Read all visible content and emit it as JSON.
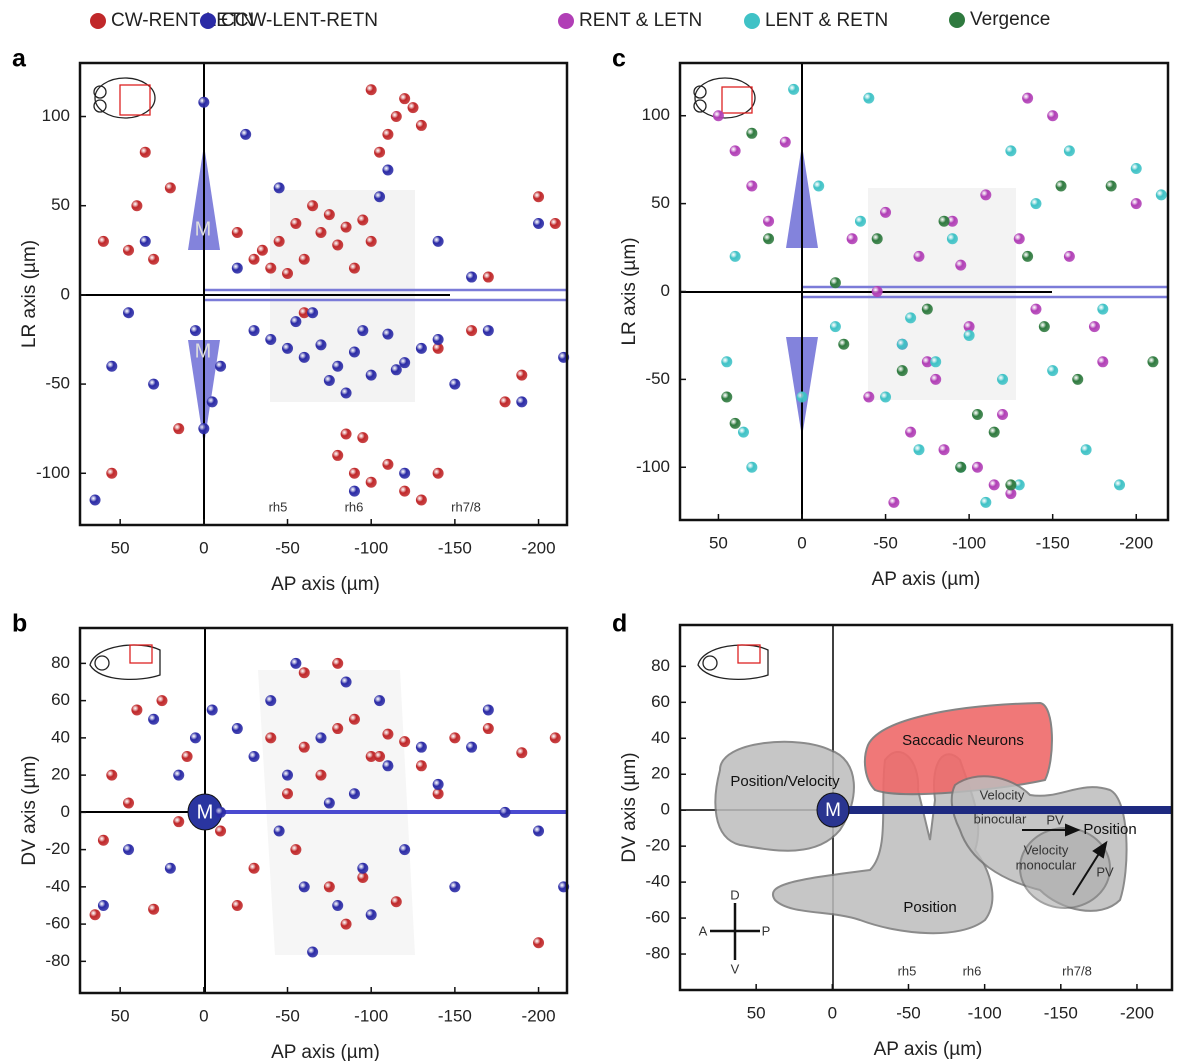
{
  "chart_data": [
    {
      "type": "scatter",
      "panel_label": "a",
      "x_label": "AP axis (µm)",
      "y_label": "LR axis (µm)",
      "xlim": [
        74,
        -217
      ],
      "ylim": [
        -129,
        130
      ],
      "xticks": [
        50,
        0,
        -50,
        -100,
        -150,
        -200
      ],
      "yticks": [
        -100,
        -50,
        0,
        50,
        100
      ],
      "annotations": [
        "M",
        "M",
        "rh5",
        "rh6",
        "rh7/8"
      ],
      "series": [
        {
          "name": "CW-RENT-LETN",
          "color": "#c0282a",
          "x": [
            -35,
            -45,
            -55,
            -60,
            -70,
            -75,
            -80,
            -85,
            -90,
            -95,
            -100,
            -50,
            -65,
            -40,
            -30,
            -20,
            -110,
            -120,
            -115,
            -100,
            -105,
            -125,
            -130,
            -95,
            -85,
            -80,
            -90,
            -100,
            -110,
            -120,
            -130,
            -140,
            60,
            45,
            40,
            30,
            20,
            35,
            -160,
            -180,
            -200,
            -170,
            -190,
            15,
            55,
            -140,
            -210,
            -60
          ],
          "values": [
            25,
            30,
            40,
            20,
            35,
            45,
            28,
            38,
            15,
            42,
            30,
            12,
            50,
            15,
            20,
            35,
            90,
            110,
            100,
            115,
            80,
            105,
            95,
            -80,
            -78,
            -90,
            -100,
            -105,
            -95,
            -110,
            -115,
            -100,
            30,
            25,
            50,
            20,
            60,
            80,
            -20,
            -60,
            55,
            10,
            -45,
            -75,
            -100,
            -30,
            40,
            -10
          ]
        },
        {
          "name": "CCW-LENT-RETN",
          "color": "#2b2ba6",
          "x": [
            -30,
            -40,
            -50,
            -60,
            -70,
            -80,
            -90,
            -100,
            -110,
            -120,
            -130,
            -140,
            -55,
            -75,
            -95,
            -115,
            -65,
            -85,
            -10,
            -5,
            0,
            5,
            0,
            45,
            55,
            35,
            -25,
            -45,
            -150,
            -170,
            -190,
            -215,
            -200,
            -140,
            -110,
            -120,
            -90,
            -20,
            30,
            65,
            -160,
            -105
          ],
          "values": [
            -20,
            -25,
            -30,
            -35,
            -28,
            -40,
            -32,
            -45,
            -22,
            -38,
            -30,
            -25,
            -15,
            -48,
            -20,
            -42,
            -10,
            -55,
            -40,
            -60,
            108,
            -20,
            -75,
            -10,
            -40,
            30,
            90,
            60,
            -50,
            -20,
            -60,
            -35,
            40,
            30,
            70,
            -100,
            -110,
            15,
            -50,
            -115,
            10,
            55
          ]
        }
      ]
    },
    {
      "type": "scatter",
      "panel_label": "b",
      "x_label": "AP axis (µm)",
      "y_label": "DV axis (µm)",
      "xlim": [
        74,
        -217
      ],
      "ylim": [
        -97,
        99
      ],
      "xticks": [
        50,
        0,
        -50,
        -100,
        -150,
        -200
      ],
      "yticks": [
        -80,
        -60,
        -40,
        -20,
        0,
        20,
        40,
        60,
        80
      ],
      "annotations": [
        "M"
      ],
      "series": [
        {
          "color": "#c0282a",
          "x": [
            -40,
            -60,
            -80,
            -100,
            -120,
            -70,
            -90,
            -110,
            -50,
            -130,
            -150,
            -170,
            -190,
            -210,
            -30,
            -20,
            -10,
            10,
            25,
            40,
            55,
            65,
            30,
            45,
            -75,
            -95,
            -60,
            -85,
            -115,
            -140,
            -200,
            -55,
            -80,
            -105,
            60,
            15
          ],
          "values": [
            40,
            35,
            45,
            30,
            38,
            20,
            50,
            42,
            10,
            25,
            40,
            45,
            32,
            40,
            -30,
            -50,
            -10,
            30,
            60,
            55,
            20,
            -55,
            -52,
            5,
            -40,
            -35,
            75,
            -60,
            -48,
            10,
            -70,
            -20,
            80,
            30,
            -15,
            -5
          ]
        },
        {
          "color": "#2b2ba6",
          "x": [
            -30,
            -50,
            -70,
            -90,
            -110,
            -130,
            -60,
            -80,
            -100,
            -120,
            -40,
            -20,
            -5,
            5,
            15,
            30,
            45,
            60,
            -140,
            -160,
            -180,
            -200,
            -215,
            -65,
            -85,
            -55,
            -105,
            -45,
            -75,
            -95,
            20,
            -150,
            -170,
            -10
          ],
          "values": [
            30,
            20,
            40,
            10,
            25,
            35,
            -40,
            -50,
            -55,
            -20,
            60,
            45,
            55,
            40,
            20,
            50,
            -20,
            -50,
            15,
            35,
            0,
            -10,
            -40,
            -75,
            70,
            80,
            60,
            -10,
            5,
            -30,
            -30,
            -40,
            55,
            0
          ]
        }
      ]
    },
    {
      "type": "scatter",
      "panel_label": "c",
      "x_label": "AP axis (µm)",
      "y_label": "LR axis (µm)",
      "xlim": [
        73,
        -219
      ],
      "ylim": [
        -130,
        130
      ],
      "xticks": [
        50,
        0,
        -50,
        -100,
        -150,
        -200
      ],
      "yticks": [
        -100,
        -50,
        0,
        50,
        100
      ],
      "series": [
        {
          "name": "RENT & LETN",
          "color": "#b13fb6",
          "x": [
            50,
            40,
            30,
            20,
            10,
            -30,
            -50,
            -70,
            -90,
            -110,
            -130,
            -60,
            -80,
            -100,
            -120,
            -140,
            -115,
            -125,
            -105,
            -135,
            -40,
            -160,
            -180,
            -200,
            -95,
            -85,
            -65,
            -45,
            -75,
            -55,
            -150,
            -175
          ],
          "values": [
            100,
            80,
            60,
            40,
            85,
            30,
            45,
            20,
            40,
            55,
            30,
            -30,
            -50,
            -20,
            -70,
            -10,
            -110,
            -115,
            -100,
            110,
            -60,
            20,
            -40,
            50,
            15,
            -90,
            -80,
            0,
            -40,
            -120,
            100,
            -20
          ]
        },
        {
          "name": "LENT & RETN",
          "color": "#3fc2c6",
          "x": [
            45,
            35,
            5,
            -10,
            -20,
            -40,
            -60,
            -80,
            -100,
            -120,
            -140,
            -160,
            -180,
            -200,
            -215,
            -50,
            -70,
            -90,
            -110,
            -130,
            -150,
            -170,
            30,
            40,
            0,
            -35,
            -65,
            -95,
            -125,
            -190
          ],
          "values": [
            -40,
            -80,
            115,
            60,
            -20,
            110,
            -30,
            -40,
            -25,
            -50,
            50,
            80,
            -10,
            70,
            55,
            -60,
            -90,
            30,
            -120,
            -110,
            -45,
            -90,
            -100,
            20,
            -60,
            40,
            -15,
            -100,
            80,
            -110
          ]
        },
        {
          "name": "Vergence",
          "color": "#2f7a3f",
          "x": [
            45,
            40,
            20,
            -25,
            -45,
            -60,
            -85,
            -105,
            -125,
            -145,
            -165,
            -185,
            -210,
            -75,
            -95,
            -135,
            -115,
            -155,
            30,
            -20
          ],
          "values": [
            -60,
            -75,
            30,
            -30,
            30,
            -45,
            40,
            -70,
            -110,
            -20,
            -50,
            60,
            -40,
            -10,
            -100,
            20,
            -80,
            60,
            90,
            5
          ]
        }
      ]
    },
    {
      "type": "diagram",
      "panel_label": "d",
      "x_label": "AP axis (µm)",
      "y_label": "DV axis (µm)",
      "xlim": [
        100,
        -223
      ],
      "ylim": [
        -100,
        103
      ],
      "xticks": [
        50,
        0,
        -50,
        -100,
        -150,
        -200
      ],
      "yticks": [
        -80,
        -60,
        -40,
        -20,
        0,
        20,
        40,
        60,
        80
      ],
      "regions": [
        "Position/Velocity",
        "Saccadic Neurons",
        "Position",
        "Velocity",
        "binocular",
        "PV",
        "Position",
        "Velocity",
        "monocular",
        "PV"
      ],
      "compass": [
        "D",
        "V",
        "A",
        "P"
      ],
      "annotations": [
        "M",
        "rh5",
        "rh6",
        "rh7/8"
      ]
    }
  ]
}
